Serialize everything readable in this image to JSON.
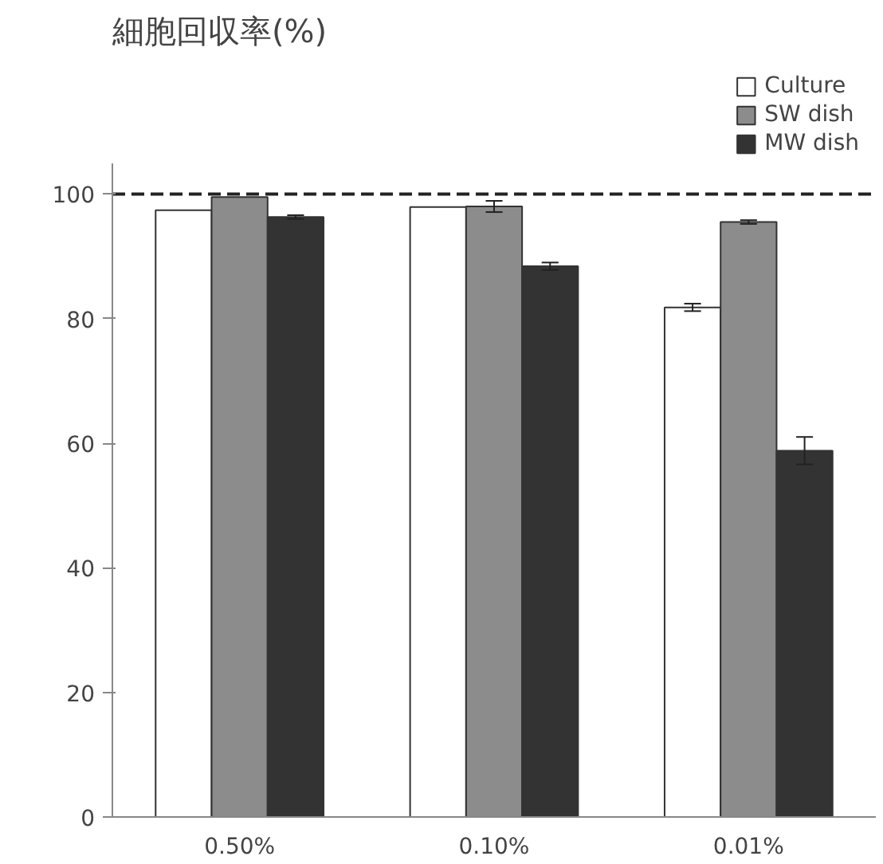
{
  "chart_data": {
    "type": "bar",
    "ylabel": "細胞回収率(%)",
    "categories": [
      "0.50%",
      "0.10%",
      "0.01%"
    ],
    "series": [
      {
        "name": "Culture",
        "color": "#ffffff",
        "values": [
          97.4,
          97.9,
          81.8
        ],
        "errors": [
          null,
          null,
          0.6
        ]
      },
      {
        "name": "SW dish",
        "color": "#8c8c8c",
        "values": [
          99.5,
          98,
          95.5
        ],
        "errors": [
          null,
          0.9,
          0.3
        ]
      },
      {
        "name": "MW dish",
        "color": "#333333",
        "values": [
          96.3,
          88.4,
          58.8
        ],
        "errors": [
          0.3,
          0.6,
          2.2
        ]
      }
    ],
    "ylim": [
      0,
      105
    ],
    "yticks": [
      0,
      20,
      40,
      60,
      80,
      100
    ],
    "grid": false,
    "legend": "top right",
    "ref_lines": [
      {
        "axis": "y",
        "value": 100,
        "line_style": "dashed",
        "color": "#222222"
      }
    ]
  }
}
